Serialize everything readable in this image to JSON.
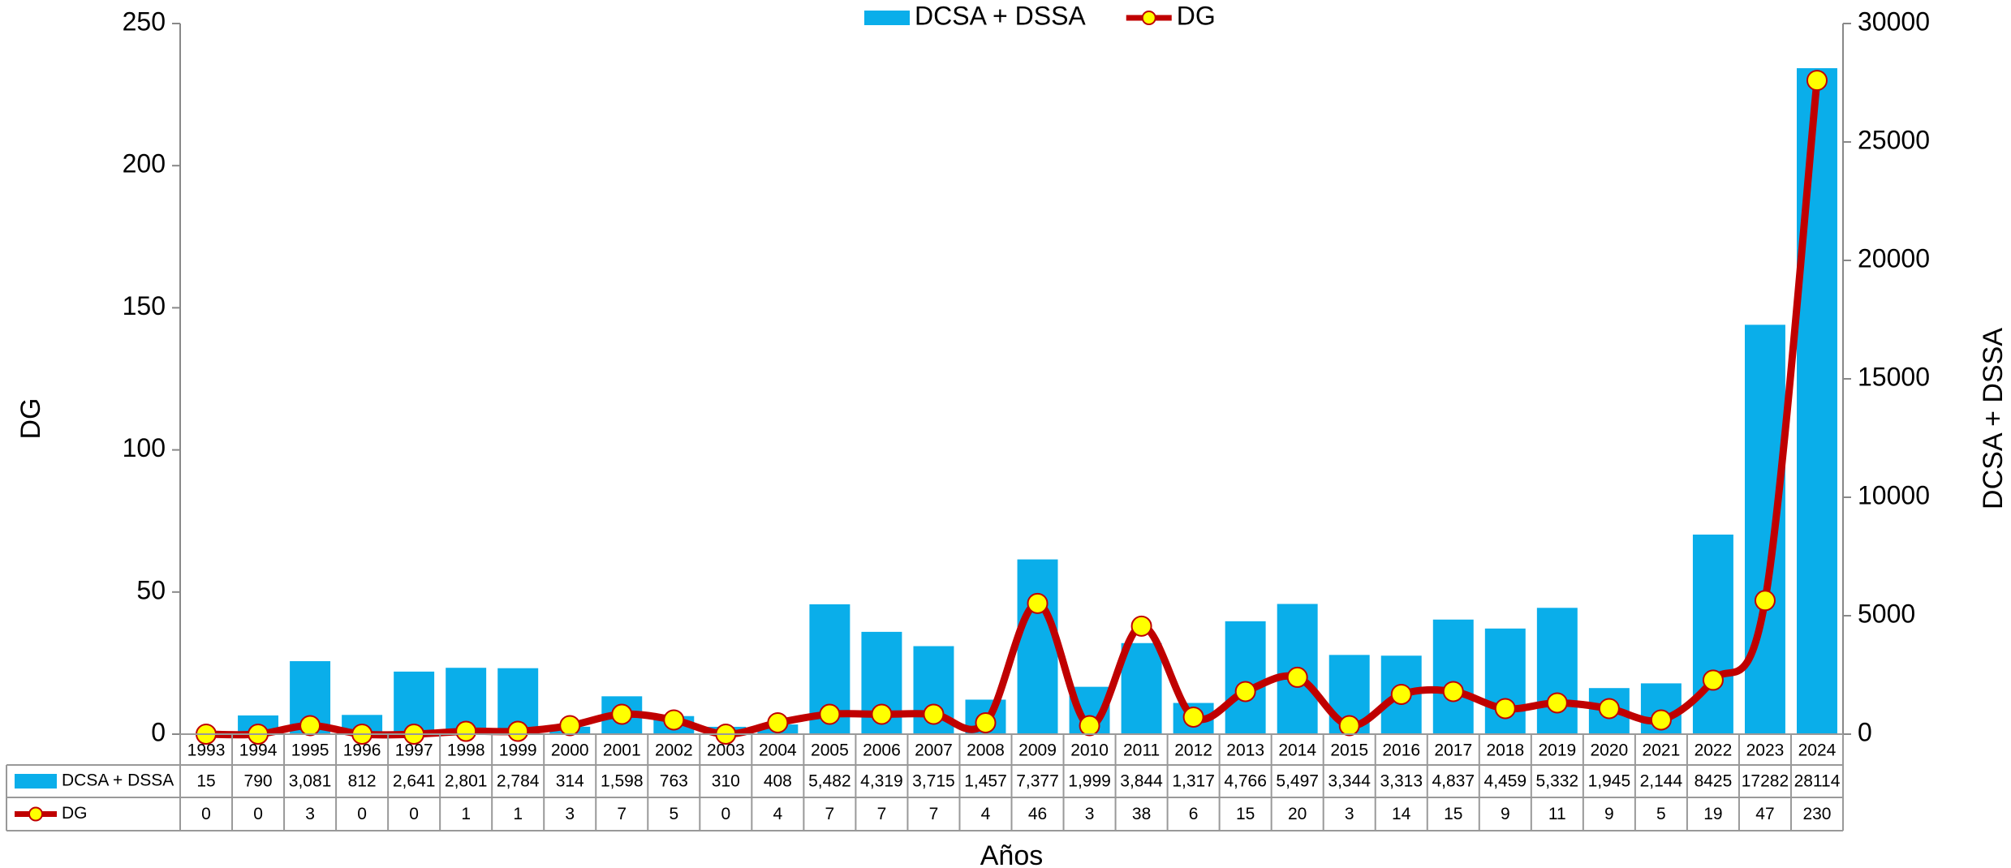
{
  "chart_data": {
    "type": "bar-line",
    "xlabel": "Años",
    "ylabel": "DG",
    "y2label": "DCSA + DSSA",
    "categories": [
      "1993",
      "1994",
      "1995",
      "1996",
      "1997",
      "1998",
      "1999",
      "2000",
      "2001",
      "2002",
      "2003",
      "2004",
      "2005",
      "2006",
      "2007",
      "2008",
      "2009",
      "2010",
      "2011",
      "2012",
      "2013",
      "2014",
      "2015",
      "2016",
      "2017",
      "2018",
      "2019",
      "2020",
      "2021",
      "2022",
      "2023",
      "2024"
    ],
    "series": [
      {
        "name": "DCSA + DSSA",
        "type": "bar",
        "axis": "y2",
        "color": "#0aaeea",
        "values": [
          15,
          790,
          3081,
          812,
          2641,
          2801,
          2784,
          314,
          1598,
          763,
          310,
          408,
          5482,
          4319,
          3715,
          1457,
          7377,
          1999,
          3844,
          1317,
          4766,
          5497,
          3344,
          3313,
          4837,
          4459,
          5332,
          1945,
          2144,
          8425,
          17282,
          28114
        ],
        "value_labels": [
          "15",
          "790",
          "3,081",
          "812",
          "2,641",
          "2,801",
          "2,784",
          "314",
          "1,598",
          "763",
          "310",
          "408",
          "5,482",
          "4,319",
          "3,715",
          "1,457",
          "7,377",
          "1,999",
          "3,844",
          "1,317",
          "4,766",
          "5,497",
          "3,344",
          "3,313",
          "4,837",
          "4,459",
          "5,332",
          "1,945",
          "2,144",
          "8425",
          "17282",
          "28114"
        ]
      },
      {
        "name": "DG",
        "type": "line",
        "axis": "y",
        "color": "#c00000",
        "marker_color": "#ffff00",
        "values": [
          0,
          0,
          3,
          0,
          0,
          1,
          1,
          3,
          7,
          5,
          0,
          4,
          7,
          7,
          7,
          4,
          46,
          3,
          38,
          6,
          15,
          20,
          3,
          14,
          15,
          9,
          11,
          9,
          5,
          19,
          47,
          230
        ]
      }
    ],
    "ylim": [
      0,
      250
    ],
    "yticks": [
      0,
      50,
      100,
      150,
      200,
      250
    ],
    "y2lim": [
      0,
      30000
    ],
    "y2ticks": [
      0,
      5000,
      10000,
      15000,
      20000,
      25000,
      30000
    ],
    "legend": "top",
    "data_table": true
  }
}
